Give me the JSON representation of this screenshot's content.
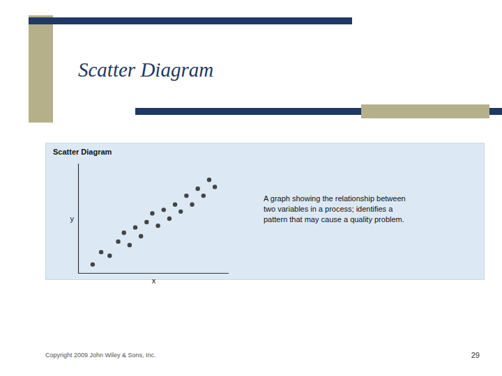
{
  "chart_data": {
    "type": "scatter",
    "title": "Scatter Diagram",
    "subtitle": "Scatter Diagram",
    "x_label": "x",
    "y_label": "y",
    "x": [
      1.0,
      1.3,
      1.6,
      1.9,
      2.1,
      2.3,
      2.5,
      2.7,
      2.9,
      3.1,
      3.3,
      3.5,
      3.7,
      3.9,
      4.1,
      4.3,
      4.5,
      4.7,
      4.9,
      5.1,
      5.3
    ],
    "values": [
      0.5,
      1.2,
      1.0,
      1.8,
      2.3,
      1.6,
      2.6,
      2.1,
      2.9,
      3.4,
      2.7,
      3.6,
      3.1,
      3.9,
      3.5,
      4.4,
      3.9,
      4.8,
      4.4,
      5.3,
      4.9
    ],
    "color": "#444444",
    "marker": "circle",
    "xlim": [
      0.5,
      5.8
    ],
    "ylim": [
      0.0,
      6.2
    ],
    "xticks": [],
    "yticks": [],
    "tick_labels": false,
    "grid": false,
    "annotations": [
      "A graph showing the relationship between\ntwo variables in a process; identifies a\npattern that may cause a quality problem.",
      "Copyright 2009 John Wiley & Sons, Inc.",
      "29"
    ]
  }
}
